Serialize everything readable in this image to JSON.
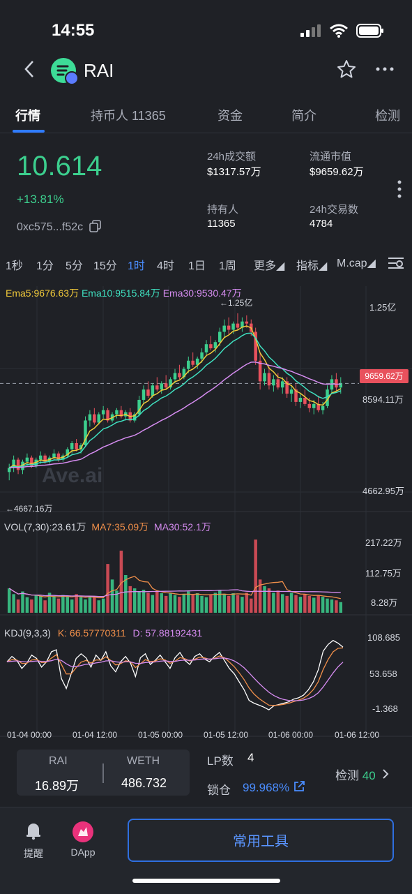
{
  "status_bar": {
    "time": "14:55"
  },
  "header": {
    "token": "RAI",
    "icons": [
      "back-chevron-icon",
      "star-icon",
      "more-dots-icon"
    ]
  },
  "tabs": [
    {
      "label": "行情",
      "active": true
    },
    {
      "label": "持币人 11365",
      "active": false
    },
    {
      "label": "资金",
      "active": false
    },
    {
      "label": "简介",
      "active": false
    },
    {
      "label": "检测",
      "active": false
    }
  ],
  "summary": {
    "price": "10.614",
    "change": "+13.81%",
    "address": "0xc575...f52c",
    "stats": [
      {
        "label": "24h成交额",
        "value": "$1317.57万"
      },
      {
        "label": "流通市值",
        "value": "$9659.62万"
      },
      {
        "label": "持有人",
        "value": "11365"
      },
      {
        "label": "24h交易数",
        "value": "4784"
      }
    ]
  },
  "timeframes": [
    {
      "label": "1秒"
    },
    {
      "label": "1分"
    },
    {
      "label": "5分"
    },
    {
      "label": "15分"
    },
    {
      "label": "1时",
      "active": true
    },
    {
      "label": "4时"
    },
    {
      "label": "1日"
    },
    {
      "label": "1周"
    },
    {
      "label": "更多"
    },
    {
      "label": "指标"
    },
    {
      "label": "M.cap"
    }
  ],
  "chart_data": {
    "type": "line",
    "legend": {
      "ema5": "Ema5:9676.63万",
      "ema10": "Ema10:9515.84万",
      "ema30": "Ema30:9530.47万"
    },
    "y_ticks": [
      "1.25亿",
      "8594.11万",
      "4662.95万"
    ],
    "high_marker": "←1.25亿",
    "low_marker": "←4667.16万",
    "current_tag": "9659.62万",
    "watermark": "Ave.ai",
    "x_ticks": [
      "01-04 00:00",
      "01-04 12:00",
      "01-05 00:00",
      "01-05 12:00",
      "01-06 00:00",
      "01-06 12:00"
    ],
    "candles": [
      [
        48,
        52,
        44,
        50
      ],
      [
        50,
        56,
        48,
        54
      ],
      [
        54,
        55,
        47,
        49
      ],
      [
        49,
        54,
        47,
        53
      ],
      [
        53,
        57,
        51,
        55
      ],
      [
        55,
        56,
        50,
        51
      ],
      [
        51,
        55,
        50,
        54
      ],
      [
        54,
        58,
        52,
        56
      ],
      [
        56,
        57,
        52,
        53
      ],
      [
        53,
        56,
        52,
        55
      ],
      [
        55,
        59,
        54,
        57
      ],
      [
        57,
        58,
        53,
        54
      ],
      [
        54,
        57,
        53,
        56
      ],
      [
        56,
        60,
        55,
        59
      ],
      [
        59,
        63,
        57,
        62
      ],
      [
        62,
        64,
        58,
        59
      ],
      [
        59,
        62,
        57,
        61
      ],
      [
        61,
        75,
        60,
        73
      ],
      [
        73,
        78,
        70,
        76
      ],
      [
        76,
        79,
        71,
        72
      ],
      [
        72,
        77,
        71,
        76
      ],
      [
        76,
        80,
        74,
        78
      ],
      [
        78,
        79,
        72,
        73
      ],
      [
        73,
        77,
        72,
        76
      ],
      [
        76,
        79,
        74,
        78
      ],
      [
        78,
        80,
        74,
        75
      ],
      [
        75,
        78,
        73,
        77
      ],
      [
        77,
        79,
        72,
        73
      ],
      [
        73,
        77,
        72,
        76
      ],
      [
        76,
        85,
        75,
        83
      ],
      [
        83,
        90,
        81,
        88
      ],
      [
        88,
        92,
        84,
        85
      ],
      [
        85,
        91,
        84,
        90
      ],
      [
        90,
        94,
        87,
        88
      ],
      [
        88,
        92,
        86,
        91
      ],
      [
        91,
        95,
        88,
        89
      ],
      [
        89,
        94,
        88,
        93
      ],
      [
        93,
        98,
        91,
        96
      ],
      [
        96,
        100,
        93,
        94
      ],
      [
        94,
        99,
        93,
        98
      ],
      [
        98,
        104,
        96,
        102
      ],
      [
        102,
        106,
        99,
        100
      ],
      [
        100,
        104,
        98,
        103
      ],
      [
        103,
        108,
        101,
        106
      ],
      [
        106,
        112,
        104,
        110
      ],
      [
        110,
        114,
        107,
        108
      ],
      [
        108,
        112,
        106,
        111
      ],
      [
        111,
        118,
        109,
        116
      ],
      [
        116,
        122,
        113,
        119
      ],
      [
        119,
        123,
        115,
        117
      ],
      [
        117,
        121,
        115,
        120
      ],
      [
        120,
        125,
        117,
        118
      ],
      [
        118,
        123,
        116,
        121
      ],
      [
        121,
        124,
        118,
        120
      ],
      [
        120,
        122,
        114,
        116
      ],
      [
        116,
        118,
        100,
        102
      ],
      [
        102,
        106,
        88,
        92
      ],
      [
        92,
        98,
        90,
        96
      ],
      [
        96,
        99,
        88,
        90
      ],
      [
        90,
        95,
        87,
        93
      ],
      [
        93,
        96,
        88,
        89
      ],
      [
        89,
        94,
        86,
        92
      ],
      [
        92,
        94,
        84,
        86
      ],
      [
        86,
        90,
        82,
        88
      ],
      [
        88,
        91,
        80,
        82
      ],
      [
        82,
        86,
        79,
        84
      ],
      [
        84,
        88,
        80,
        81
      ],
      [
        81,
        84,
        77,
        79
      ],
      [
        79,
        83,
        76,
        81
      ],
      [
        81,
        85,
        77,
        78
      ],
      [
        78,
        82,
        76,
        80
      ],
      [
        80,
        90,
        79,
        88
      ],
      [
        88,
        95,
        86,
        93
      ],
      [
        93,
        96,
        87,
        89
      ],
      [
        89,
        94,
        86,
        91
      ]
    ],
    "volume": {
      "legend": {
        "vol": "VOL(7,30):23.61万",
        "ma7": "MA7:35.09万",
        "ma30": "MA30:52.1万"
      },
      "y_ticks": [
        "217.22万",
        "112.75万",
        "8.28万"
      ],
      "values": [
        55,
        42,
        30,
        48,
        35,
        30,
        40,
        38,
        28,
        45,
        38,
        32,
        40,
        36,
        30,
        42,
        35,
        30,
        38,
        34,
        28,
        32,
        110,
        75,
        50,
        140,
        85,
        60,
        55,
        48,
        52,
        45,
        40,
        48,
        44,
        38,
        45,
        40,
        36,
        42,
        48,
        40,
        44,
        38,
        35,
        40,
        45,
        50,
        42,
        38,
        44,
        40,
        36,
        45,
        32,
        165,
        75,
        60,
        55,
        45,
        50,
        42,
        38,
        45,
        40,
        36,
        42,
        38,
        34,
        40,
        36,
        32,
        30,
        28,
        24
      ]
    },
    "kdj": {
      "legend": {
        "title": "KDJ(9,3,3)",
        "k": "K:  66.57770311",
        "d": "D:  57.88192431"
      },
      "y_ticks": [
        "108.685",
        "53.658",
        "-1.368"
      ],
      "j": [
        70,
        78,
        72,
        60,
        68,
        80,
        75,
        62,
        70,
        85,
        88,
        45,
        30,
        52,
        75,
        82,
        76,
        62,
        80,
        72,
        85,
        64,
        55,
        70,
        78,
        68,
        48,
        76,
        82,
        66,
        72,
        80,
        70,
        60,
        76,
        84,
        72,
        66,
        78,
        82,
        74,
        70,
        78,
        84,
        72,
        60,
        52,
        40,
        28,
        12,
        8,
        5,
        2,
        -2,
        4,
        6,
        8,
        10,
        14,
        16,
        20,
        28,
        40,
        58,
        86,
        96,
        102,
        98,
        92
      ]
    }
  },
  "lp": {
    "token_a_label": "RAI",
    "token_a_value": "16.89万",
    "token_b_label": "WETH",
    "token_b_value": "486.732",
    "lp_label": "LP数",
    "lp_value": "4",
    "lock_label": "锁仓",
    "lock_value": "99.968%",
    "detect_label": "检测",
    "detect_value": "40"
  },
  "bottom": {
    "alert_label": "提醒",
    "dapp_label": "DApp",
    "tools_label": "常用工具"
  },
  "colors": {
    "up": "#3ccf8e",
    "down": "#e8515d",
    "accent": "#2f7bff",
    "ema5": "#f0c93a",
    "ema10": "#3fe0c0",
    "ema30": "#d58cf0"
  }
}
